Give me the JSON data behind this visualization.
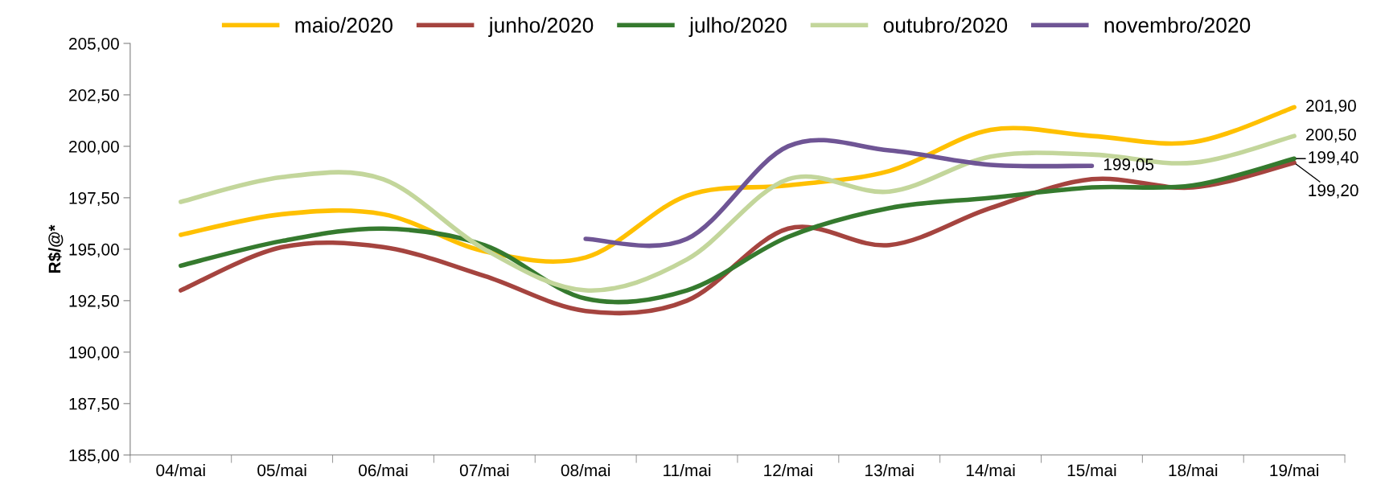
{
  "chart_data": {
    "type": "line",
    "ylabel": "R$/@*",
    "categories": [
      "04/mai",
      "05/mai",
      "06/mai",
      "07/mai",
      "08/mai",
      "11/mai",
      "12/mai",
      "13/mai",
      "14/mai",
      "15/mai",
      "18/mai",
      "19/mai"
    ],
    "series": [
      {
        "name": "maio/2020",
        "color": "#ffc000",
        "values": [
          195.7,
          196.7,
          196.7,
          194.9,
          194.6,
          197.6,
          198.1,
          198.8,
          200.8,
          200.5,
          200.2,
          201.9
        ],
        "value_labels": [
          null,
          null,
          null,
          null,
          null,
          null,
          null,
          null,
          null,
          null,
          null,
          "201,90"
        ]
      },
      {
        "name": "junho/2020",
        "color": "#a5443f",
        "values": [
          193.0,
          195.1,
          195.1,
          193.7,
          192.0,
          192.5,
          196.0,
          195.2,
          197.0,
          198.4,
          198.0,
          199.2
        ],
        "value_labels": [
          null,
          null,
          null,
          null,
          null,
          null,
          null,
          null,
          null,
          null,
          null,
          "199,20"
        ]
      },
      {
        "name": "julho/2020",
        "color": "#357a2e",
        "values": [
          194.2,
          195.4,
          196.0,
          195.2,
          192.6,
          193.0,
          195.6,
          197.0,
          197.5,
          198.0,
          198.1,
          199.4
        ],
        "value_labels": [
          null,
          null,
          null,
          null,
          null,
          null,
          null,
          null,
          null,
          null,
          null,
          "199,40"
        ]
      },
      {
        "name": "outubro/2020",
        "color": "#c3d69b",
        "values": [
          197.3,
          198.5,
          198.4,
          195.0,
          193.0,
          194.5,
          198.4,
          197.8,
          199.5,
          199.6,
          199.2,
          200.5
        ],
        "value_labels": [
          null,
          null,
          null,
          null,
          null,
          null,
          null,
          null,
          null,
          null,
          null,
          "200,50"
        ]
      },
      {
        "name": "novembro/2020",
        "color": "#6f5595",
        "values": [
          null,
          null,
          null,
          null,
          195.5,
          195.5,
          200.0,
          199.8,
          199.1,
          199.05,
          null,
          null
        ],
        "value_labels": [
          null,
          null,
          null,
          null,
          null,
          null,
          null,
          null,
          null,
          "199,05",
          null,
          null
        ]
      }
    ],
    "ylim": [
      185,
      205
    ],
    "yticks": [
      {
        "value": 185,
        "label": "185,00"
      },
      {
        "value": 187.5,
        "label": "187,50"
      },
      {
        "value": 190,
        "label": "190,00"
      },
      {
        "value": 192.5,
        "label": "192,50"
      },
      {
        "value": 195,
        "label": "195,00"
      },
      {
        "value": 197.5,
        "label": "197,50"
      },
      {
        "value": 200,
        "label": "200,00"
      },
      {
        "value": 202.5,
        "label": "202,50"
      },
      {
        "value": 205,
        "label": "205,00"
      }
    ],
    "grid": false,
    "legend": "top",
    "marker": "none",
    "line_style": "solid"
  }
}
